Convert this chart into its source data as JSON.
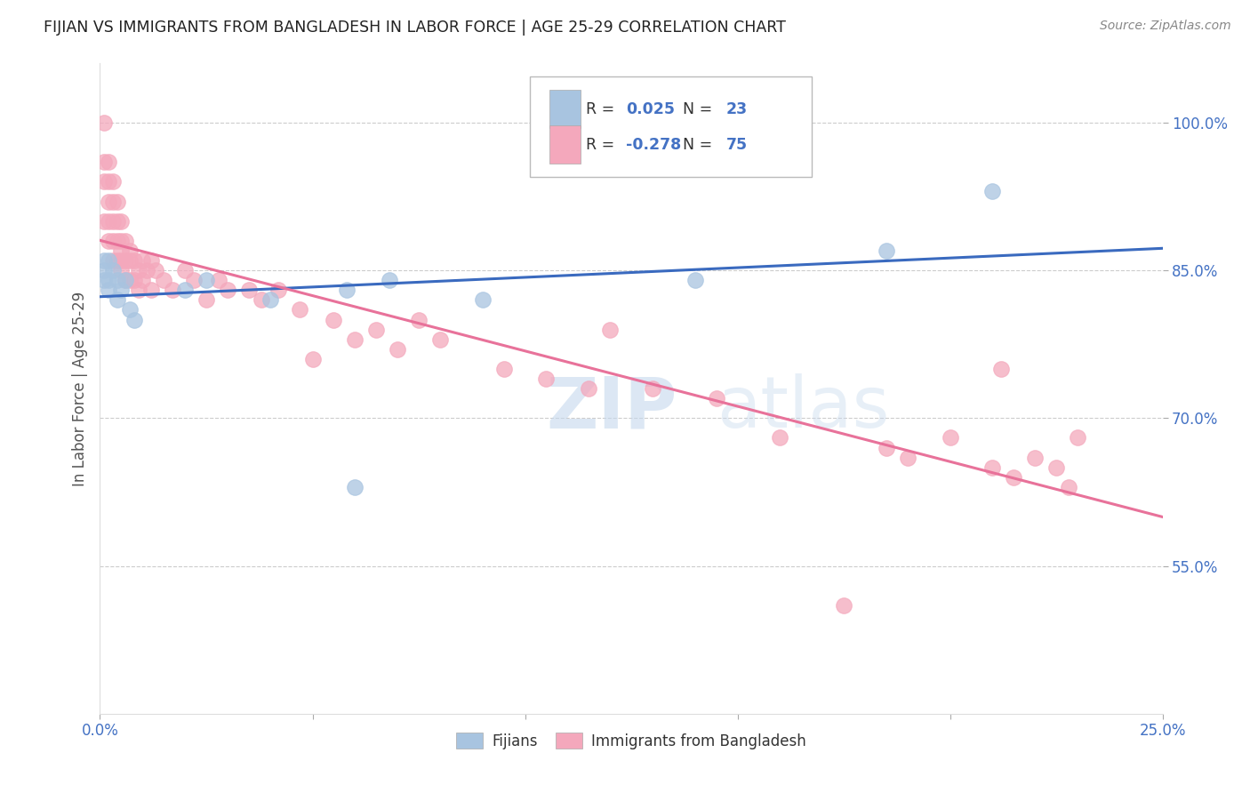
{
  "title": "FIJIAN VS IMMIGRANTS FROM BANGLADESH IN LABOR FORCE | AGE 25-29 CORRELATION CHART",
  "source": "Source: ZipAtlas.com",
  "ylabel": "In Labor Force | Age 25-29",
  "legend_labels": [
    "Fijians",
    "Immigrants from Bangladesh"
  ],
  "r_fijian": 0.025,
  "n_fijian": 23,
  "r_bangladesh": -0.278,
  "n_bangladesh": 75,
  "fijian_color": "#a8c4e0",
  "bangladesh_color": "#f4a8bc",
  "fijian_line_color": "#3a6abf",
  "bangladesh_line_color": "#e8729a",
  "fijian_line_dash": "solid",
  "bangladesh_line_dash": "solid",
  "xlim": [
    0.0,
    0.25
  ],
  "ylim": [
    0.4,
    1.06
  ],
  "yticks": [
    0.55,
    0.7,
    0.85,
    1.0
  ],
  "ytick_labels": [
    "55.0%",
    "70.0%",
    "85.0%",
    "100.0%"
  ],
  "xticks": [
    0.0,
    0.05,
    0.1,
    0.15,
    0.2,
    0.25
  ],
  "xtick_labels": [
    "0.0%",
    "",
    "",
    "",
    "",
    "25.0%"
  ],
  "fijian_x": [
    0.001,
    0.001,
    0.001,
    0.002,
    0.002,
    0.002,
    0.003,
    0.004,
    0.004,
    0.005,
    0.006,
    0.007,
    0.008,
    0.02,
    0.025,
    0.04,
    0.058,
    0.06,
    0.068,
    0.09,
    0.14,
    0.185,
    0.21
  ],
  "fijian_y": [
    0.85,
    0.86,
    0.84,
    0.86,
    0.84,
    0.83,
    0.85,
    0.84,
    0.82,
    0.83,
    0.84,
    0.81,
    0.8,
    0.83,
    0.84,
    0.82,
    0.83,
    0.63,
    0.84,
    0.82,
    0.84,
    0.87,
    0.93
  ],
  "bangladesh_x": [
    0.001,
    0.001,
    0.001,
    0.001,
    0.002,
    0.002,
    0.002,
    0.002,
    0.002,
    0.003,
    0.003,
    0.003,
    0.003,
    0.003,
    0.004,
    0.004,
    0.004,
    0.004,
    0.005,
    0.005,
    0.005,
    0.005,
    0.005,
    0.006,
    0.006,
    0.006,
    0.007,
    0.007,
    0.007,
    0.008,
    0.008,
    0.009,
    0.009,
    0.01,
    0.01,
    0.011,
    0.012,
    0.012,
    0.013,
    0.015,
    0.017,
    0.02,
    0.022,
    0.025,
    0.028,
    0.03,
    0.035,
    0.038,
    0.042,
    0.047,
    0.05,
    0.055,
    0.06,
    0.065,
    0.07,
    0.075,
    0.08,
    0.095,
    0.105,
    0.115,
    0.12,
    0.13,
    0.145,
    0.16,
    0.175,
    0.185,
    0.19,
    0.2,
    0.21,
    0.212,
    0.215,
    0.22,
    0.225,
    0.228,
    0.23
  ],
  "bangladesh_y": [
    1.0,
    0.96,
    0.94,
    0.9,
    0.96,
    0.94,
    0.92,
    0.9,
    0.88,
    0.94,
    0.92,
    0.9,
    0.88,
    0.86,
    0.92,
    0.9,
    0.88,
    0.86,
    0.9,
    0.88,
    0.87,
    0.86,
    0.85,
    0.88,
    0.86,
    0.84,
    0.87,
    0.86,
    0.84,
    0.86,
    0.84,
    0.85,
    0.83,
    0.86,
    0.84,
    0.85,
    0.86,
    0.83,
    0.85,
    0.84,
    0.83,
    0.85,
    0.84,
    0.82,
    0.84,
    0.83,
    0.83,
    0.82,
    0.83,
    0.81,
    0.76,
    0.8,
    0.78,
    0.79,
    0.77,
    0.8,
    0.78,
    0.75,
    0.74,
    0.73,
    0.79,
    0.73,
    0.72,
    0.68,
    0.51,
    0.67,
    0.66,
    0.68,
    0.65,
    0.75,
    0.64,
    0.66,
    0.65,
    0.63,
    0.68
  ],
  "watermark_zip": "ZIP",
  "watermark_atlas": "atlas",
  "background_color": "#ffffff",
  "grid_color": "#cccccc",
  "title_color": "#222222",
  "axis_label_color": "#555555",
  "tick_label_color": "#4472c4",
  "legend_r_color": "#4472c4",
  "legend_n_color": "#222222"
}
